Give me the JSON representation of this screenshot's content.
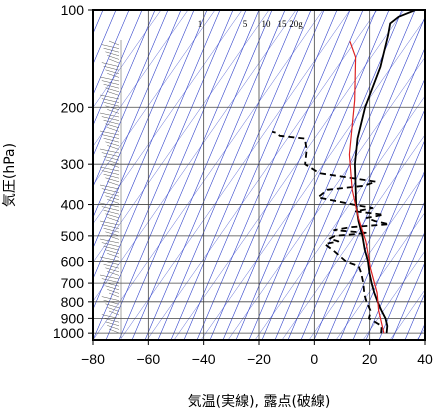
{
  "chart_data": {
    "type": "line",
    "subtype": "skew-t emagram",
    "xlabel": "気温(実線), 露点(破線)",
    "ylabel": "気圧(hPa)",
    "x_axis": {
      "min": -80,
      "max": 40,
      "ticks": [
        -80,
        -60,
        -40,
        -20,
        0,
        20,
        40
      ],
      "tick_labels": [
        "−80",
        "−60",
        "−40",
        "−20",
        "0",
        "20",
        "40"
      ]
    },
    "y_axis": {
      "scale": "log",
      "min": 100,
      "max": 1050,
      "inverted": true,
      "ticks": [
        100,
        200,
        300,
        400,
        500,
        600,
        700,
        800,
        900,
        1000
      ],
      "tick_labels": [
        "100",
        "200",
        "300",
        "400",
        "500",
        "600",
        "700",
        "800",
        "900",
        "1000"
      ]
    },
    "grid": true,
    "mixing_ratio_labels": [
      "1",
      "5",
      "10",
      "15",
      "20g"
    ],
    "colors": {
      "temperature": "#000000",
      "dewpoint": "#000000",
      "parcel": "#dd2222",
      "guides": "#3344cc",
      "grid": "#444444"
    },
    "series": [
      {
        "style": "solid",
        "points": [
          [
            24,
            1000
          ],
          [
            22,
            950
          ],
          [
            19,
            900
          ],
          [
            15,
            850
          ],
          [
            11,
            800
          ],
          [
            7,
            750
          ],
          [
            3,
            700
          ],
          [
            -1,
            650
          ],
          [
            -5,
            600
          ],
          [
            -10,
            550
          ],
          [
            -15,
            500
          ],
          [
            -21,
            450
          ],
          [
            -27,
            400
          ],
          [
            -33,
            350
          ],
          [
            -40,
            300
          ],
          [
            -47,
            250
          ],
          [
            -54,
            200
          ],
          [
            -61,
            150
          ],
          [
            -68,
            120
          ],
          [
            -71,
            110
          ],
          [
            -70,
            105
          ],
          [
            -66,
            100
          ]
        ]
      },
      {
        "style": "dashed",
        "points": [
          [
            22,
            1000
          ],
          [
            20,
            950
          ],
          [
            13,
            900
          ],
          [
            12,
            870
          ],
          [
            11,
            850
          ],
          [
            7,
            800
          ],
          [
            4,
            760
          ],
          [
            0,
            700
          ],
          [
            -4,
            650
          ],
          [
            -7,
            620
          ],
          [
            -13,
            600
          ],
          [
            -20,
            560
          ],
          [
            -26,
            530
          ],
          [
            -22,
            520
          ],
          [
            -26,
            510
          ],
          [
            -25,
            500
          ],
          [
            -14,
            490
          ],
          [
            -27,
            480
          ],
          [
            -22,
            470
          ],
          [
            -9,
            460
          ],
          [
            -15,
            450
          ],
          [
            -19,
            440
          ],
          [
            -14,
            430
          ],
          [
            -25,
            420
          ],
          [
            -20,
            410
          ],
          [
            -28,
            400
          ],
          [
            -43,
            380
          ],
          [
            -42,
            360
          ],
          [
            -30,
            350
          ],
          [
            -27,
            340
          ],
          [
            -50,
            320
          ],
          [
            -58,
            300
          ],
          [
            -62,
            270
          ],
          [
            -64,
            260
          ],
          [
            -66,
            250
          ],
          [
            -76,
            245
          ],
          [
            -78,
            240
          ],
          [
            -80,
            238
          ]
        ]
      },
      {
        "style": "solid",
        "points": [
          [
            23,
            1000
          ],
          [
            14,
            850
          ],
          [
            8,
            750
          ],
          [
            -2,
            630
          ],
          [
            -12,
            520
          ],
          [
            -22,
            440
          ],
          [
            -33,
            360
          ],
          [
            -45,
            280
          ],
          [
            -60,
            190
          ],
          [
            -73,
            140
          ],
          [
            -80,
            125
          ]
        ]
      }
    ]
  }
}
